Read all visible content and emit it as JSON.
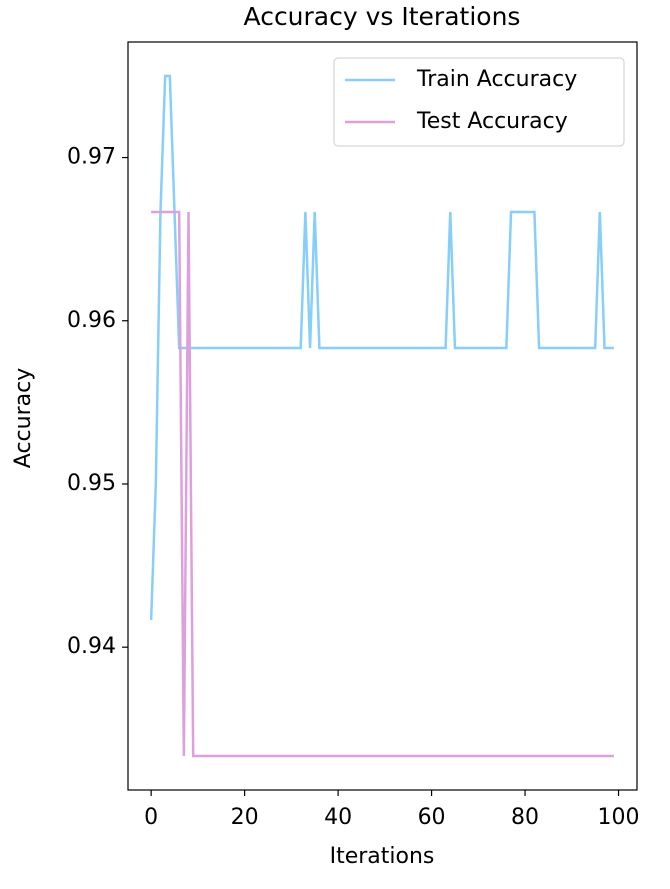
{
  "chart_data": {
    "type": "line",
    "title": "Accuracy vs Iterations",
    "x_label": "Iterations",
    "y_label": "Accuracy",
    "x": [
      0,
      1,
      2,
      3,
      4,
      5,
      6,
      7,
      8,
      9,
      10,
      11,
      12,
      13,
      14,
      15,
      16,
      17,
      18,
      19,
      20,
      21,
      22,
      23,
      24,
      25,
      26,
      27,
      28,
      29,
      30,
      31,
      32,
      33,
      34,
      35,
      36,
      37,
      38,
      39,
      40,
      41,
      42,
      43,
      44,
      45,
      46,
      47,
      48,
      49,
      50,
      51,
      52,
      53,
      54,
      55,
      56,
      57,
      58,
      59,
      60,
      61,
      62,
      63,
      64,
      65,
      66,
      67,
      68,
      69,
      70,
      71,
      72,
      73,
      74,
      75,
      76,
      77,
      78,
      79,
      80,
      81,
      82,
      83,
      84,
      85,
      86,
      87,
      88,
      89,
      90,
      91,
      92,
      93,
      94,
      95,
      96,
      97,
      98,
      99
    ],
    "series": [
      {
        "name": "Train Accuracy",
        "color": "#87cefa",
        "values": [
          0.941667,
          0.95,
          0.966667,
          0.975,
          0.975,
          0.966667,
          0.958333,
          0.958333,
          0.958333,
          0.958333,
          0.958333,
          0.958333,
          0.958333,
          0.958333,
          0.958333,
          0.958333,
          0.958333,
          0.958333,
          0.958333,
          0.958333,
          0.958333,
          0.958333,
          0.958333,
          0.958333,
          0.958333,
          0.958333,
          0.958333,
          0.958333,
          0.958333,
          0.958333,
          0.958333,
          0.958333,
          0.958333,
          0.966667,
          0.958333,
          0.966667,
          0.958333,
          0.958333,
          0.958333,
          0.958333,
          0.958333,
          0.958333,
          0.958333,
          0.958333,
          0.958333,
          0.958333,
          0.958333,
          0.958333,
          0.958333,
          0.958333,
          0.958333,
          0.958333,
          0.958333,
          0.958333,
          0.958333,
          0.958333,
          0.958333,
          0.958333,
          0.958333,
          0.958333,
          0.958333,
          0.958333,
          0.958333,
          0.958333,
          0.966667,
          0.958333,
          0.958333,
          0.958333,
          0.958333,
          0.958333,
          0.958333,
          0.958333,
          0.958333,
          0.958333,
          0.958333,
          0.958333,
          0.958333,
          0.966667,
          0.966667,
          0.966667,
          0.966667,
          0.966667,
          0.966667,
          0.958333,
          0.958333,
          0.958333,
          0.958333,
          0.958333,
          0.958333,
          0.958333,
          0.958333,
          0.958333,
          0.958333,
          0.958333,
          0.958333,
          0.958333,
          0.966667,
          0.958333,
          0.958333,
          0.958333
        ]
      },
      {
        "name": "Test Accuracy",
        "color": "#dda0dd",
        "values": [
          0.966667,
          0.966667,
          0.966667,
          0.966667,
          0.966667,
          0.966667,
          0.966667,
          0.933333,
          0.966667,
          0.933333,
          0.933333,
          0.933333,
          0.933333,
          0.933333,
          0.933333,
          0.933333,
          0.933333,
          0.933333,
          0.933333,
          0.933333,
          0.933333,
          0.933333,
          0.933333,
          0.933333,
          0.933333,
          0.933333,
          0.933333,
          0.933333,
          0.933333,
          0.933333,
          0.933333,
          0.933333,
          0.933333,
          0.933333,
          0.933333,
          0.933333,
          0.933333,
          0.933333,
          0.933333,
          0.933333,
          0.933333,
          0.933333,
          0.933333,
          0.933333,
          0.933333,
          0.933333,
          0.933333,
          0.933333,
          0.933333,
          0.933333,
          0.933333,
          0.933333,
          0.933333,
          0.933333,
          0.933333,
          0.933333,
          0.933333,
          0.933333,
          0.933333,
          0.933333,
          0.933333,
          0.933333,
          0.933333,
          0.933333,
          0.933333,
          0.933333,
          0.933333,
          0.933333,
          0.933333,
          0.933333,
          0.933333,
          0.933333,
          0.933333,
          0.933333,
          0.933333,
          0.933333,
          0.933333,
          0.933333,
          0.933333,
          0.933333,
          0.933333,
          0.933333,
          0.933333,
          0.933333,
          0.933333,
          0.933333,
          0.933333,
          0.933333,
          0.933333,
          0.933333,
          0.933333,
          0.933333,
          0.933333,
          0.933333,
          0.933333,
          0.933333,
          0.933333,
          0.933333,
          0.933333,
          0.933333
        ]
      }
    ],
    "xlim": [
      -4.95,
      103.95
    ],
    "ylim": [
      0.93125,
      0.97708
    ],
    "xticks": [
      0,
      20,
      40,
      60,
      80,
      100
    ],
    "yticks": [
      0.94,
      0.95,
      0.96,
      0.97
    ],
    "legend": "upper right"
  }
}
